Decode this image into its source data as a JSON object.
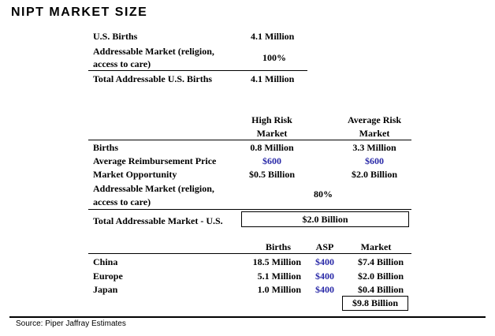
{
  "title": "NIPT MARKET SIZE",
  "us_summary": {
    "births_label": "U.S. Births",
    "births_value": "4.1 Million",
    "addressable_label_1": "Addressable Market (religion,",
    "addressable_label_2": "access to care)",
    "addressable_value": "100%",
    "total_label": "Total Addressable U.S. Births",
    "total_value": "4.1 Million"
  },
  "risk_table": {
    "col_high_1": "High Risk",
    "col_high_2": "Market",
    "col_avg_1": "Average Risk",
    "col_avg_2": "Market",
    "rows": [
      {
        "label": "Births",
        "high": "0.8 Million",
        "avg": "3.3 Million"
      },
      {
        "label": "Average Reimbursement Price",
        "high": "$600",
        "avg": "$600"
      },
      {
        "label": "Market Opportunity",
        "high": "$0.5 Billion",
        "avg": "$2.0 Billion"
      }
    ],
    "addressable_label_1": "Addressable Market (religion,",
    "addressable_label_2": "access to care)",
    "addressable_value": "80%",
    "total_label": "Total Addressable Market - U.S.",
    "total_value": "$2.0 Billion"
  },
  "intl_table": {
    "col_births": "Births",
    "col_asp": "ASP",
    "col_market": "Market",
    "rows": [
      {
        "country": "China",
        "births": "18.5 Million",
        "asp": "$400",
        "market": "$7.4 Billion"
      },
      {
        "country": "Europe",
        "births": "5.1 Million",
        "asp": "$400",
        "market": "$2.0 Billion"
      },
      {
        "country": "Japan",
        "births": "1.0 Million",
        "asp": "$400",
        "market": "$0.4 Billion"
      }
    ],
    "total_market": "$9.8 Billion"
  },
  "source": "Source: Piper Jaffray Estimates"
}
